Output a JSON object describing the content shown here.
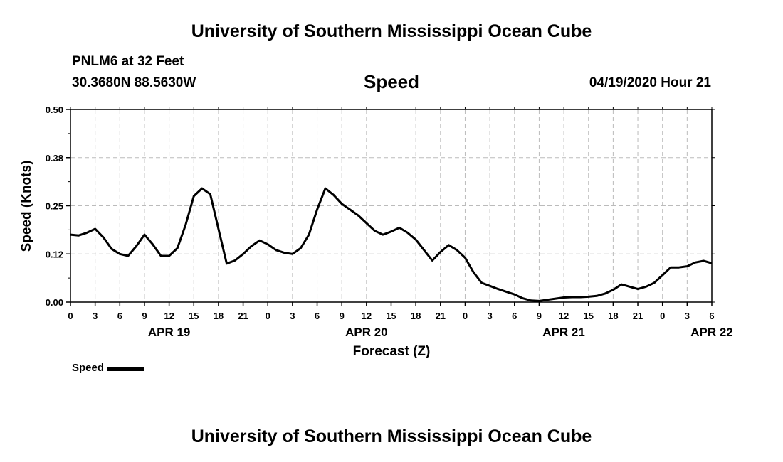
{
  "header": {
    "title": "University of Southern Mississippi Ocean Cube",
    "station": "PNLM6 at 32 Feet",
    "coords": "30.3680N 88.5630W",
    "variable": "Speed",
    "timestamp": "04/19/2020 Hour 21"
  },
  "footer": {
    "title": "University of Southern Mississippi Ocean Cube"
  },
  "legend": {
    "label": "Speed"
  },
  "chart_data": {
    "type": "line",
    "title": "Speed",
    "xlabel": "Forecast (Z)",
    "ylabel": "Speed (Knots)",
    "ylim": [
      0,
      0.5
    ],
    "xlim": [
      0,
      78
    ],
    "grid": true,
    "yticks": [
      "0.00",
      "0.12",
      "0.25",
      "0.38",
      "0.50"
    ],
    "xticks": [
      "0",
      "3",
      "6",
      "9",
      "12",
      "15",
      "18",
      "21",
      "0",
      "3",
      "6",
      "9",
      "12",
      "15",
      "18",
      "21",
      "0",
      "3",
      "6",
      "9",
      "12",
      "15",
      "18",
      "21",
      "0",
      "3",
      "6"
    ],
    "date_labels": [
      {
        "label": "APR 19",
        "hour": 12
      },
      {
        "label": "APR 20",
        "hour": 36
      },
      {
        "label": "APR 21",
        "hour": 60
      },
      {
        "label": "APR 22",
        "hour": 78
      }
    ],
    "series": [
      {
        "name": "Speed",
        "color": "#000000",
        "hours": [
          0,
          1,
          2,
          3,
          4,
          5,
          6,
          7,
          8,
          9,
          10,
          11,
          12,
          13,
          14,
          15,
          16,
          17,
          18,
          19,
          20,
          21,
          22,
          23,
          24,
          25,
          26,
          27,
          28,
          29,
          30,
          31,
          32,
          33,
          34,
          35,
          36,
          37,
          38,
          39,
          40,
          41,
          42,
          43,
          44,
          45,
          46,
          47,
          48,
          49,
          50,
          51,
          52,
          53,
          54,
          55,
          56,
          57,
          58,
          59,
          60,
          61,
          62,
          63,
          64,
          65,
          66,
          67,
          68,
          69,
          70,
          71,
          72,
          73,
          74,
          75,
          76,
          77,
          78
        ],
        "values": [
          0.175,
          0.173,
          0.18,
          0.19,
          0.168,
          0.138,
          0.125,
          0.12,
          0.145,
          0.175,
          0.15,
          0.12,
          0.12,
          0.14,
          0.2,
          0.275,
          0.295,
          0.28,
          0.19,
          0.1,
          0.108,
          0.125,
          0.145,
          0.16,
          0.15,
          0.135,
          0.128,
          0.125,
          0.14,
          0.175,
          0.24,
          0.295,
          0.278,
          0.255,
          0.24,
          0.225,
          0.205,
          0.185,
          0.175,
          0.183,
          0.193,
          0.18,
          0.162,
          0.135,
          0.108,
          0.13,
          0.148,
          0.135,
          0.115,
          0.078,
          0.05,
          0.042,
          0.034,
          0.027,
          0.02,
          0.01,
          0.004,
          0.003,
          0.006,
          0.009,
          0.012,
          0.013,
          0.013,
          0.014,
          0.016,
          0.022,
          0.032,
          0.046,
          0.04,
          0.034,
          0.04,
          0.05,
          0.07,
          0.09,
          0.09,
          0.093,
          0.103,
          0.107,
          0.101
        ]
      }
    ]
  }
}
